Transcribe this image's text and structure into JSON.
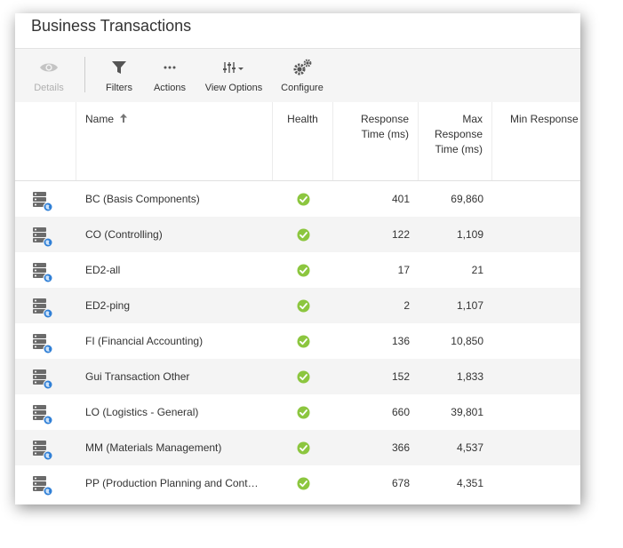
{
  "header": {
    "title": "Business Transactions"
  },
  "toolbar": {
    "details": {
      "label": "Details",
      "icon": "eye-icon"
    },
    "filters": {
      "label": "Filters",
      "icon": "funnel-icon"
    },
    "actions": {
      "label": "Actions",
      "icon": "ellipsis-icon"
    },
    "view_options": {
      "label": "View Options",
      "icon": "sliders-icon"
    },
    "configure": {
      "label": "Configure",
      "icon": "gears-icon"
    }
  },
  "table": {
    "columns": {
      "name": "Name",
      "health": "Health",
      "response_time": "Response Time (ms)",
      "max_response_time": "Max Response Time (ms)",
      "min_response_time": "Min Response"
    },
    "sort": {
      "column": "name",
      "direction": "ascending"
    },
    "rows": [
      {
        "name": "BC (Basis Components)",
        "health": "normal",
        "response_time": "401",
        "max_response_time": "69,860"
      },
      {
        "name": "CO (Controlling)",
        "health": "normal",
        "response_time": "122",
        "max_response_time": "1,109"
      },
      {
        "name": "ED2-all",
        "health": "normal",
        "response_time": "17",
        "max_response_time": "21"
      },
      {
        "name": "ED2-ping",
        "health": "normal",
        "response_time": "2",
        "max_response_time": "1,107"
      },
      {
        "name": "FI (Financial Accounting)",
        "health": "normal",
        "response_time": "136",
        "max_response_time": "10,850"
      },
      {
        "name": "Gui Transaction Other",
        "health": "normal",
        "response_time": "152",
        "max_response_time": "1,833"
      },
      {
        "name": "LO (Logistics - General)",
        "health": "normal",
        "response_time": "660",
        "max_response_time": "39,801"
      },
      {
        "name": "MM (Materials Management)",
        "health": "normal",
        "response_time": "366",
        "max_response_time": "4,537"
      },
      {
        "name": "PP (Production Planning and Cont…",
        "health": "normal",
        "response_time": "678",
        "max_response_time": "4,351"
      }
    ]
  },
  "colors": {
    "health_ok": "#8cc63f",
    "row_icon": "#6b6b6b",
    "globe": "#2f7fd6"
  }
}
